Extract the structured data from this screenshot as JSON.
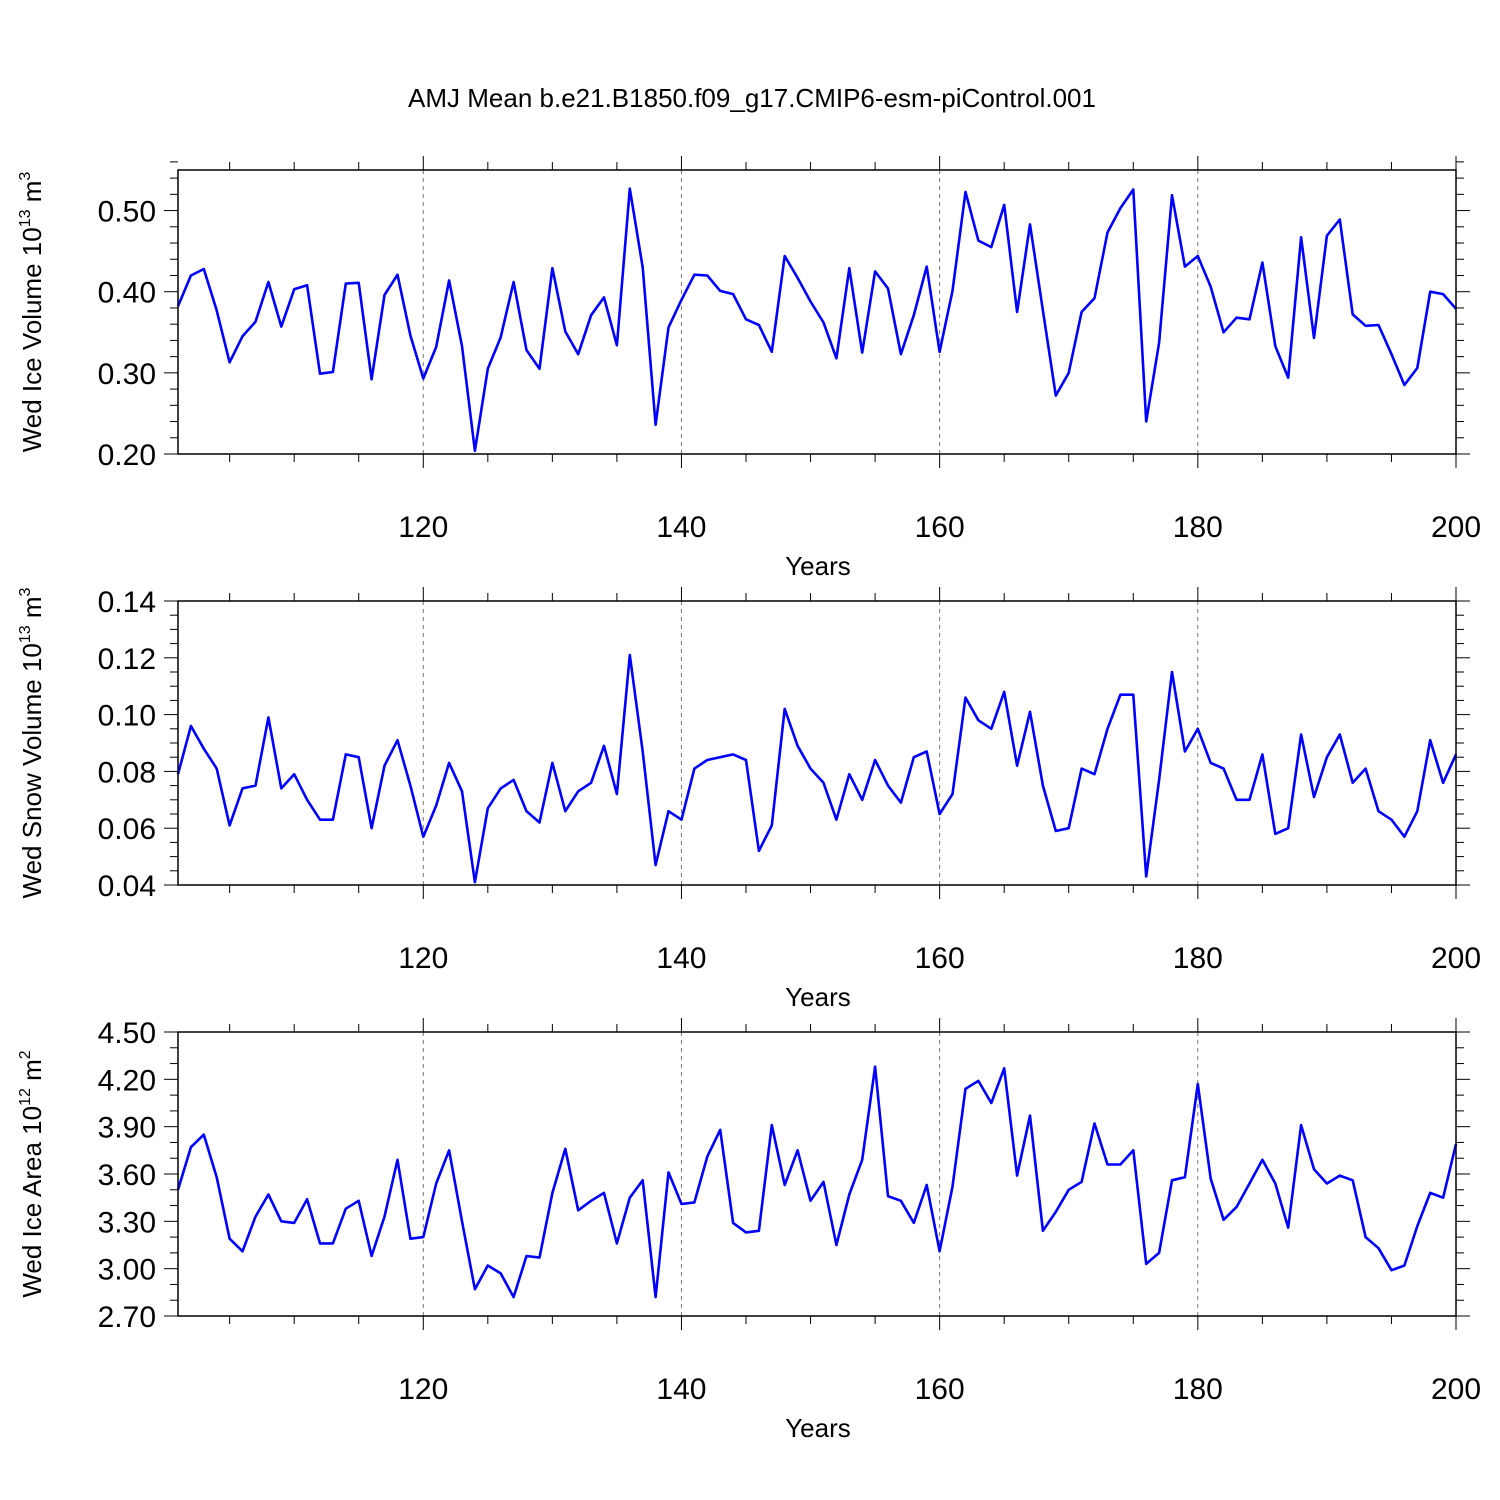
{
  "title": "AMJ Mean b.e21.B1850.f09_g17.CMIP6-esm-piControl.001",
  "chart_data": [
    {
      "type": "line",
      "ylabel": "Wed Ice Volume 10",
      "ylabel_exp": "13",
      "ylabel_unit": "m",
      "ylabel_unit_exp": "3",
      "xlabel": "Years",
      "xlim": [
        101,
        200
      ],
      "ylim": [
        0.2,
        0.55
      ],
      "xticks": [
        120,
        140,
        160,
        180,
        200
      ],
      "xtick_labels": [
        "120",
        "140",
        "160",
        "180",
        "200"
      ],
      "yticks": [
        0.2,
        0.3,
        0.4,
        0.5
      ],
      "ytick_labels": [
        "0.20",
        "0.30",
        "0.40",
        "0.50"
      ],
      "ymin_step": 0.02,
      "grid": "dashed vertical lines at major x ticks",
      "line_color": "#0000ff",
      "series": [
        {
          "x_start": 101,
          "values": [
            0.382,
            0.42,
            0.428,
            0.377,
            0.313,
            0.345,
            0.363,
            0.412,
            0.357,
            0.403,
            0.408,
            0.299,
            0.301,
            0.41,
            0.411,
            0.292,
            0.396,
            0.421,
            0.346,
            0.293,
            0.332,
            0.414,
            0.333,
            0.204,
            0.305,
            0.344,
            0.412,
            0.328,
            0.305,
            0.429,
            0.351,
            0.323,
            0.371,
            0.393,
            0.334,
            0.527,
            0.43,
            0.236,
            0.356,
            0.39,
            0.421,
            0.42,
            0.401,
            0.397,
            0.366,
            0.359,
            0.326,
            0.444,
            0.417,
            0.388,
            0.362,
            0.318,
            0.429,
            0.325,
            0.425,
            0.404,
            0.323,
            0.371,
            0.431,
            0.326,
            0.401,
            0.523,
            0.463,
            0.455,
            0.507,
            0.375,
            0.483,
            0.377,
            0.272,
            0.3,
            0.375,
            0.392,
            0.473,
            0.503,
            0.526,
            0.24,
            0.337,
            0.519,
            0.431,
            0.444,
            0.406,
            0.35,
            0.368,
            0.366,
            0.436,
            0.333,
            0.294,
            0.467,
            0.343,
            0.469,
            0.489,
            0.372,
            0.358,
            0.359,
            0.323,
            0.285,
            0.306,
            0.4,
            0.397,
            0.379
          ]
        }
      ]
    },
    {
      "type": "line",
      "ylabel": "Wed Snow Volume 10",
      "ylabel_exp": "13",
      "ylabel_unit": "m",
      "ylabel_unit_exp": "3",
      "xlabel": "Years",
      "xlim": [
        101,
        200
      ],
      "ylim": [
        0.04,
        0.14
      ],
      "xticks": [
        120,
        140,
        160,
        180,
        200
      ],
      "xtick_labels": [
        "120",
        "140",
        "160",
        "180",
        "200"
      ],
      "yticks": [
        0.04,
        0.06,
        0.08,
        0.1,
        0.12,
        0.14
      ],
      "ytick_labels": [
        "0.04",
        "0.06",
        "0.08",
        "0.10",
        "0.12",
        "0.14"
      ],
      "ymin_step": 0.005,
      "grid": "dashed vertical lines at major x ticks",
      "line_color": "#0000ff",
      "series": [
        {
          "x_start": 101,
          "values": [
            0.079,
            0.096,
            0.088,
            0.081,
            0.061,
            0.074,
            0.075,
            0.099,
            0.074,
            0.079,
            0.07,
            0.063,
            0.063,
            0.086,
            0.085,
            0.06,
            0.082,
            0.091,
            0.075,
            0.057,
            0.068,
            0.083,
            0.073,
            0.041,
            0.067,
            0.074,
            0.077,
            0.066,
            0.062,
            0.083,
            0.066,
            0.073,
            0.076,
            0.089,
            0.072,
            0.121,
            0.087,
            0.047,
            0.066,
            0.063,
            0.081,
            0.084,
            0.085,
            0.086,
            0.084,
            0.052,
            0.061,
            0.102,
            0.089,
            0.081,
            0.076,
            0.063,
            0.079,
            0.07,
            0.084,
            0.075,
            0.069,
            0.085,
            0.087,
            0.065,
            0.072,
            0.106,
            0.098,
            0.095,
            0.108,
            0.082,
            0.101,
            0.075,
            0.059,
            0.06,
            0.081,
            0.079,
            0.095,
            0.107,
            0.107,
            0.043,
            0.077,
            0.115,
            0.087,
            0.095,
            0.083,
            0.081,
            0.07,
            0.07,
            0.086,
            0.058,
            0.06,
            0.093,
            0.071,
            0.085,
            0.093,
            0.076,
            0.081,
            0.066,
            0.063,
            0.057,
            0.066,
            0.091,
            0.076,
            0.086
          ]
        }
      ]
    },
    {
      "type": "line",
      "ylabel": "Wed Ice Area 10",
      "ylabel_exp": "12",
      "ylabel_unit": "m",
      "ylabel_unit_exp": "2",
      "xlabel": "Years",
      "xlim": [
        101,
        200
      ],
      "ylim": [
        2.7,
        4.5
      ],
      "xticks": [
        120,
        140,
        160,
        180,
        200
      ],
      "xtick_labels": [
        "120",
        "140",
        "160",
        "180",
        "200"
      ],
      "yticks": [
        2.7,
        3.0,
        3.3,
        3.6,
        3.9,
        4.2,
        4.5
      ],
      "ytick_labels": [
        "2.70",
        "3.00",
        "3.30",
        "3.60",
        "3.90",
        "4.20",
        "4.50"
      ],
      "ymin_step": 0.1,
      "grid": "dashed vertical lines at major x ticks",
      "line_color": "#0000ff",
      "series": [
        {
          "x_start": 101,
          "values": [
            3.5,
            3.77,
            3.85,
            3.58,
            3.19,
            3.11,
            3.33,
            3.47,
            3.3,
            3.29,
            3.44,
            3.16,
            3.16,
            3.38,
            3.43,
            3.08,
            3.33,
            3.69,
            3.19,
            3.2,
            3.54,
            3.75,
            3.3,
            2.87,
            3.02,
            2.97,
            2.82,
            3.08,
            3.07,
            3.48,
            3.76,
            3.37,
            3.43,
            3.48,
            3.16,
            3.45,
            3.56,
            2.82,
            3.61,
            3.41,
            3.42,
            3.71,
            3.88,
            3.29,
            3.23,
            3.24,
            3.91,
            3.53,
            3.75,
            3.43,
            3.55,
            3.15,
            3.47,
            3.69,
            4.28,
            3.46,
            3.43,
            3.29,
            3.53,
            3.11,
            3.52,
            4.14,
            4.19,
            4.05,
            4.27,
            3.59,
            3.97,
            3.24,
            3.36,
            3.5,
            3.55,
            3.92,
            3.66,
            3.66,
            3.75,
            3.03,
            3.1,
            3.56,
            3.58,
            4.17,
            3.57,
            3.31,
            3.39,
            3.54,
            3.69,
            3.54,
            3.26,
            3.91,
            3.63,
            3.54,
            3.59,
            3.56,
            3.2,
            3.13,
            2.99,
            3.02,
            3.27,
            3.48,
            3.45,
            3.79
          ]
        }
      ]
    }
  ]
}
